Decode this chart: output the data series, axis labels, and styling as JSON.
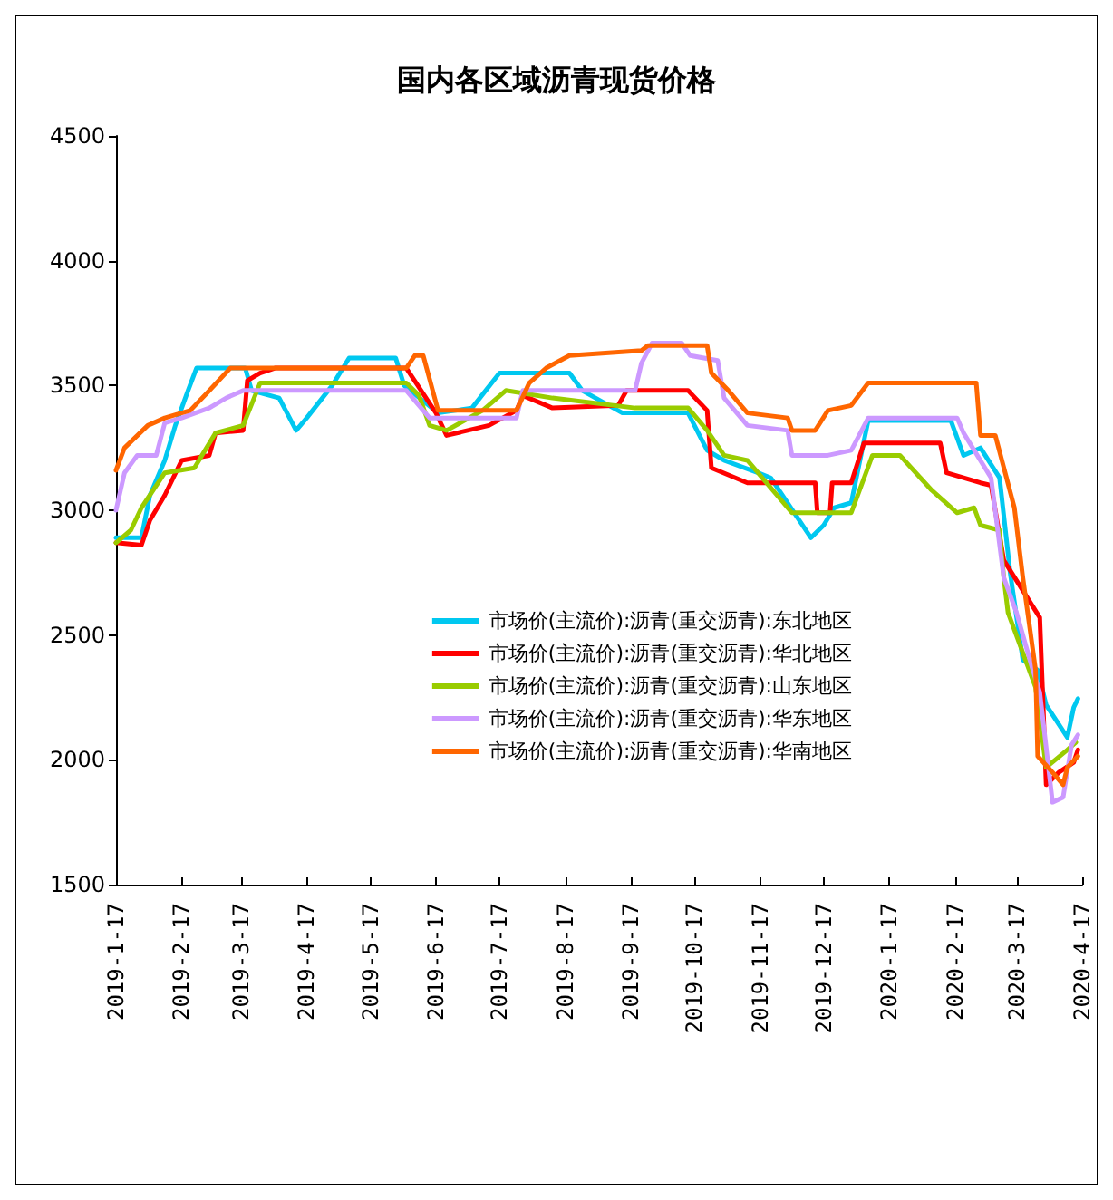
{
  "chart_data": {
    "type": "line",
    "title": "国内各区域沥青现货价格",
    "legend": "bottom right",
    "grid": false,
    "marker": "none",
    "line_style": "solid",
    "ylim": [
      1500,
      4500
    ],
    "yticks": [
      1500,
      2000,
      2500,
      3000,
      3500,
      4000,
      4500
    ],
    "xlim": [
      "2019-01-17",
      "2020-04-17"
    ],
    "xticks": [
      {
        "value": "2019-01-17",
        "label": "2019-1-17"
      },
      {
        "value": "2019-02-17",
        "label": "2019-2-17"
      },
      {
        "value": "2019-03-17",
        "label": "2019-3-17"
      },
      {
        "value": "2019-04-17",
        "label": "2019-4-17"
      },
      {
        "value": "2019-05-17",
        "label": "2019-5-17"
      },
      {
        "value": "2019-06-17",
        "label": "2019-6-17"
      },
      {
        "value": "2019-07-17",
        "label": "2019-7-17"
      },
      {
        "value": "2019-08-17",
        "label": "2019-8-17"
      },
      {
        "value": "2019-09-17",
        "label": "2019-9-17"
      },
      {
        "value": "2019-10-17",
        "label": "2019-10-17"
      },
      {
        "value": "2019-11-17",
        "label": "2019-11-17"
      },
      {
        "value": "2019-12-17",
        "label": "2019-12-17"
      },
      {
        "value": "2020-01-17",
        "label": "2020-1-17"
      },
      {
        "value": "2020-02-17",
        "label": "2020-2-17"
      },
      {
        "value": "2020-03-17",
        "label": "2020-3-17"
      },
      {
        "value": "2020-04-17",
        "label": "2020-4-17"
      }
    ],
    "series": [
      {
        "name": "市场价(主流价):沥青(重交沥青):东北地区",
        "color": "#00c8f0",
        "x": [
          "2019-01-17",
          "2019-01-29",
          "2019-02-02",
          "2019-02-09",
          "2019-02-14",
          "2019-02-20",
          "2019-02-24",
          "2019-03-19",
          "2019-03-22",
          "2019-04-04",
          "2019-04-12",
          "2019-04-17",
          "2019-04-29",
          "2019-05-07",
          "2019-05-29",
          "2019-06-02",
          "2019-06-18",
          "2019-07-04",
          "2019-07-17",
          "2019-08-19",
          "2019-08-25",
          "2019-09-13",
          "2019-10-14",
          "2019-10-23",
          "2019-10-31",
          "2019-11-16",
          "2019-11-22",
          "2019-12-11",
          "2019-12-17",
          "2019-12-22",
          "2019-12-30",
          "2020-01-07",
          "2020-02-15",
          "2020-02-21",
          "2020-02-29",
          "2020-03-09",
          "2020-03-14",
          "2020-03-20",
          "2020-03-27",
          "2020-03-31",
          "2020-04-10",
          "2020-04-13",
          "2020-04-15"
        ],
        "values": [
          2890,
          2890,
          3060,
          3200,
          3340,
          3480,
          3570,
          3570,
          3480,
          3450,
          3320,
          3370,
          3500,
          3610,
          3610,
          3500,
          3390,
          3410,
          3550,
          3550,
          3480,
          3390,
          3390,
          3240,
          3200,
          3150,
          3130,
          2890,
          2940,
          3010,
          3030,
          3360,
          3360,
          3220,
          3250,
          3130,
          2750,
          2400,
          2360,
          2220,
          2090,
          2210,
          2245
        ]
      },
      {
        "name": "市场价(主流价):沥青(重交沥青):华北地区",
        "color": "#ff0000",
        "x": [
          "2019-01-17",
          "2019-01-29",
          "2019-02-02",
          "2019-02-09",
          "2019-02-17",
          "2019-03-02",
          "2019-03-05",
          "2019-03-18",
          "2019-03-20",
          "2019-03-26",
          "2019-04-02",
          "2019-06-03",
          "2019-06-17",
          "2019-06-22",
          "2019-07-12",
          "2019-07-25",
          "2019-07-28",
          "2019-08-11",
          "2019-09-11",
          "2019-09-15",
          "2019-10-14",
          "2019-10-23",
          "2019-10-25",
          "2019-11-11",
          "2019-12-13",
          "2019-12-14",
          "2019-12-20",
          "2019-12-21",
          "2019-12-30",
          "2020-01-05",
          "2020-02-10",
          "2020-02-13",
          "2020-02-29",
          "2020-03-05",
          "2020-03-11",
          "2020-03-28",
          "2020-03-31",
          "2020-04-06",
          "2020-04-13",
          "2020-04-15"
        ],
        "values": [
          2870,
          2860,
          2960,
          3060,
          3200,
          3220,
          3310,
          3320,
          3520,
          3550,
          3570,
          3570,
          3390,
          3300,
          3340,
          3400,
          3460,
          3410,
          3420,
          3480,
          3480,
          3400,
          3170,
          3110,
          3110,
          2990,
          2990,
          3110,
          3110,
          3270,
          3270,
          3150,
          3110,
          3100,
          2800,
          2570,
          1900,
          1950,
          1990,
          2040
        ]
      },
      {
        "name": "市场价(主流价):沥青(重交沥青):山东地区",
        "color": "#99cc00",
        "x": [
          "2019-01-17",
          "2019-01-24",
          "2019-01-29",
          "2019-02-09",
          "2019-02-23",
          "2019-03-05",
          "2019-03-18",
          "2019-03-26",
          "2019-06-03",
          "2019-06-09",
          "2019-06-14",
          "2019-06-22",
          "2019-07-09",
          "2019-07-20",
          "2019-08-11",
          "2019-09-19",
          "2019-10-14",
          "2019-10-23",
          "2019-10-31",
          "2019-11-11",
          "2019-11-22",
          "2019-12-02",
          "2019-12-30",
          "2020-01-09",
          "2020-01-22",
          "2020-02-06",
          "2020-02-18",
          "2020-02-26",
          "2020-02-29",
          "2020-03-09",
          "2020-03-11",
          "2020-03-13",
          "2020-03-26",
          "2020-03-31",
          "2020-04-10",
          "2020-04-14"
        ],
        "values": [
          2870,
          2920,
          3010,
          3150,
          3170,
          3310,
          3340,
          3510,
          3510,
          3460,
          3340,
          3320,
          3400,
          3480,
          3450,
          3410,
          3410,
          3320,
          3220,
          3200,
          3090,
          2990,
          2990,
          3220,
          3220,
          3080,
          2990,
          3010,
          2940,
          2920,
          2730,
          2590,
          2290,
          1970,
          2040,
          2070
        ]
      },
      {
        "name": "市场价(主流价):沥青(重交沥青):华东地区",
        "color": "#cc99ff",
        "x": [
          "2019-01-17",
          "2019-01-21",
          "2019-01-27",
          "2019-02-05",
          "2019-02-09",
          "2019-02-17",
          "2019-03-02",
          "2019-03-10",
          "2019-03-18",
          "2019-06-03",
          "2019-06-14",
          "2019-07-25",
          "2019-07-28",
          "2019-09-19",
          "2019-09-22",
          "2019-09-27",
          "2019-10-11",
          "2019-10-15",
          "2019-10-28",
          "2019-10-31",
          "2019-11-11",
          "2019-11-30",
          "2019-12-02",
          "2019-12-19",
          "2019-12-30",
          "2020-01-07",
          "2020-02-18",
          "2020-02-21",
          "2020-03-05",
          "2020-03-11",
          "2020-03-17",
          "2020-03-24",
          "2020-03-28",
          "2020-04-03",
          "2020-04-08",
          "2020-04-12",
          "2020-04-15"
        ],
        "values": [
          3000,
          3150,
          3220,
          3220,
          3350,
          3370,
          3410,
          3450,
          3480,
          3480,
          3370,
          3370,
          3480,
          3480,
          3590,
          3670,
          3670,
          3620,
          3600,
          3450,
          3340,
          3320,
          3220,
          3220,
          3240,
          3370,
          3370,
          3310,
          3130,
          2730,
          2590,
          2380,
          2270,
          1830,
          1850,
          2060,
          2100
        ]
      },
      {
        "name": "市场价(主流价):沥青(重交沥青):华南地区",
        "color": "#ff6600",
        "x": [
          "2019-01-17",
          "2019-01-21",
          "2019-02-01",
          "2019-02-09",
          "2019-02-21",
          "2019-03-01",
          "2019-03-12",
          "2019-06-03",
          "2019-06-07",
          "2019-06-11",
          "2019-06-18",
          "2019-07-25",
          "2019-07-31",
          "2019-08-08",
          "2019-08-19",
          "2019-09-22",
          "2019-09-25",
          "2019-10-23",
          "2019-10-25",
          "2019-11-02",
          "2019-11-11",
          "2019-11-30",
          "2019-12-02",
          "2019-12-13",
          "2019-12-19",
          "2019-12-30",
          "2020-01-07",
          "2020-02-27",
          "2020-02-29",
          "2020-03-07",
          "2020-03-16",
          "2020-03-20",
          "2020-03-26",
          "2020-03-27",
          "2020-04-03",
          "2020-04-08",
          "2020-04-10",
          "2020-04-15"
        ],
        "values": [
          3160,
          3250,
          3340,
          3370,
          3400,
          3470,
          3570,
          3570,
          3620,
          3620,
          3400,
          3400,
          3510,
          3570,
          3620,
          3640,
          3660,
          3660,
          3550,
          3480,
          3390,
          3370,
          3320,
          3320,
          3400,
          3420,
          3510,
          3510,
          3300,
          3300,
          3010,
          2730,
          2360,
          2015,
          1950,
          1900,
          1970,
          2015
        ]
      }
    ]
  }
}
